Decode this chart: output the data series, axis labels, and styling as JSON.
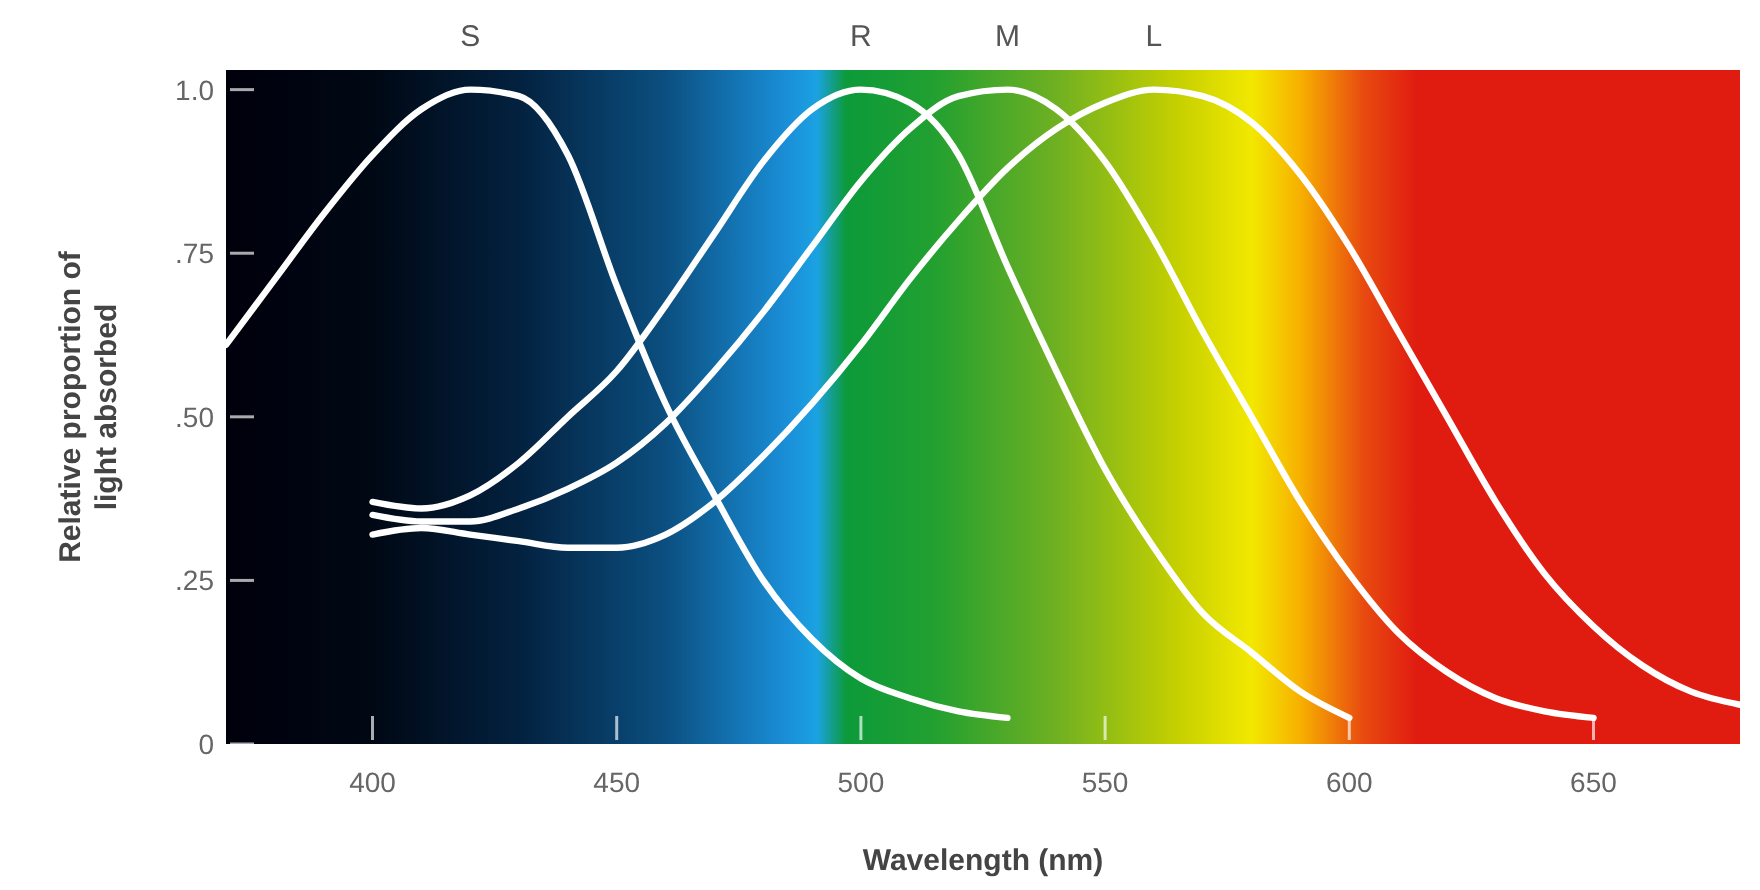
{
  "chart_data": {
    "type": "line",
    "xlabel": "Wavelength (nm)",
    "ylabel": "Relative proportion of\nlight absorbed",
    "xlim": [
      370,
      680
    ],
    "ylim": [
      0,
      1.03
    ],
    "xticks": [
      400,
      450,
      500,
      550,
      600,
      650
    ],
    "yticks": [
      {
        "value": 0,
        "label": "0"
      },
      {
        "value": 0.25,
        "label": ".25"
      },
      {
        "value": 0.5,
        "label": ".50"
      },
      {
        "value": 0.75,
        "label": ".75"
      },
      {
        "value": 1,
        "label": "1.0"
      }
    ],
    "grid": false,
    "legend": false,
    "marker": "none",
    "line_style": "solid",
    "series": [
      {
        "name": "S",
        "color": "#ffffff",
        "x": [
          370,
          380,
          390,
          400,
          410,
          420,
          430,
          440,
          450,
          460,
          470,
          480,
          490,
          500,
          510,
          520,
          530
        ],
        "values": [
          0.61,
          0.71,
          0.81,
          0.9,
          0.97,
          1.0,
          0.99,
          0.9,
          0.7,
          0.52,
          0.38,
          0.25,
          0.16,
          0.1,
          0.07,
          0.05,
          0.04
        ]
      },
      {
        "name": "R",
        "color": "#ffffff",
        "x": [
          400,
          410,
          420,
          430,
          440,
          450,
          460,
          470,
          480,
          490,
          500,
          510,
          520,
          530,
          540,
          550,
          560,
          570,
          580,
          590,
          600
        ],
        "values": [
          0.37,
          0.36,
          0.38,
          0.43,
          0.5,
          0.57,
          0.67,
          0.78,
          0.89,
          0.97,
          1.0,
          0.98,
          0.9,
          0.73,
          0.57,
          0.42,
          0.3,
          0.2,
          0.14,
          0.08,
          0.04
        ]
      },
      {
        "name": "M",
        "color": "#ffffff",
        "x": [
          400,
          410,
          420,
          430,
          440,
          450,
          460,
          470,
          480,
          490,
          500,
          510,
          520,
          530,
          540,
          550,
          560,
          570,
          580,
          590,
          600,
          610,
          620,
          630,
          640,
          650
        ],
        "values": [
          0.35,
          0.34,
          0.34,
          0.36,
          0.39,
          0.43,
          0.49,
          0.57,
          0.66,
          0.76,
          0.86,
          0.94,
          0.99,
          1.0,
          0.97,
          0.89,
          0.77,
          0.63,
          0.5,
          0.37,
          0.26,
          0.17,
          0.11,
          0.07,
          0.05,
          0.04
        ]
      },
      {
        "name": "L",
        "color": "#ffffff",
        "x": [
          400,
          410,
          420,
          430,
          440,
          450,
          460,
          470,
          480,
          490,
          500,
          510,
          520,
          530,
          540,
          550,
          560,
          570,
          580,
          590,
          600,
          610,
          620,
          630,
          640,
          650,
          660,
          670,
          680
        ],
        "values": [
          0.32,
          0.33,
          0.32,
          0.31,
          0.3,
          0.3,
          0.32,
          0.37,
          0.44,
          0.52,
          0.61,
          0.71,
          0.8,
          0.88,
          0.94,
          0.98,
          1.0,
          0.99,
          0.95,
          0.87,
          0.76,
          0.63,
          0.5,
          0.37,
          0.26,
          0.18,
          0.12,
          0.08,
          0.06
        ]
      }
    ]
  }
}
